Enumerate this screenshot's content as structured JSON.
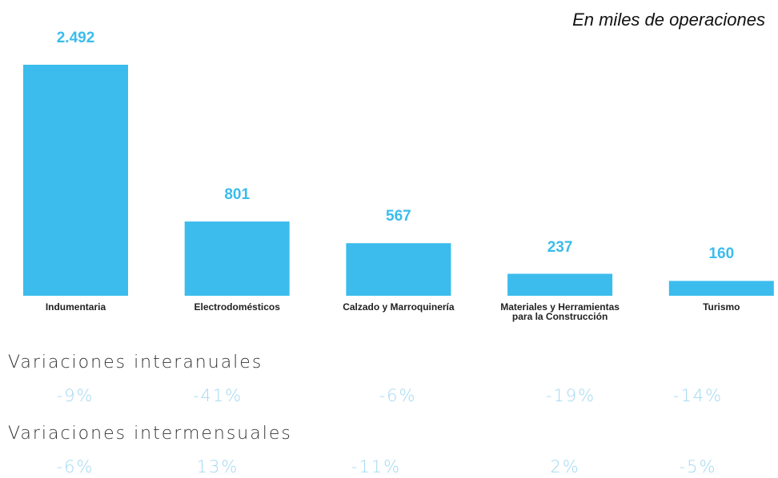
{
  "chart_data": {
    "type": "bar",
    "subtitle": "En miles de operaciones",
    "categories": [
      "Indumentaria",
      "Electrodomésticos",
      "Calzado y Marroquinería",
      "Materiales y Herramientas\npara la Construcción",
      "Turismo"
    ],
    "values": [
      2492,
      801,
      567,
      237,
      160
    ],
    "value_labels": [
      "2.492",
      "801",
      "567",
      "237",
      "160"
    ],
    "color": "#3bbcec"
  },
  "variations": [
    {
      "title": "Variaciones interanuales",
      "values": [
        "-9%",
        "-41%",
        "-6%",
        "-19%",
        "-14%"
      ]
    },
    {
      "title": "Variaciones intermensuales",
      "values": [
        "-6%",
        "13%",
        "-11%",
        "2%",
        "-5%"
      ]
    }
  ]
}
